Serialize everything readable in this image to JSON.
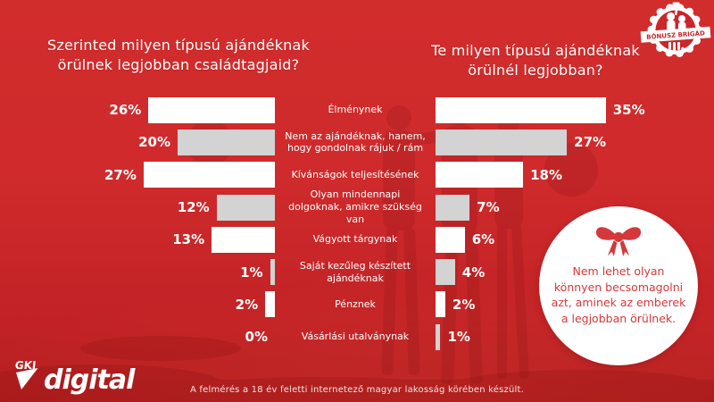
{
  "page": {
    "background_color": "#cf2a2c",
    "accent_red": "#d5383a"
  },
  "badge": {
    "label": "BÓNUSZ BRIGÁD"
  },
  "left_chart": {
    "title": "Szerinted milyen típusú ajándéknak örülnek legjobban családtagjaid?"
  },
  "right_chart": {
    "title": "Te milyen típusú ajándéknak örülnél legjobban?"
  },
  "chart_data": {
    "type": "bar",
    "orientation": "horizontal-butterfly",
    "categories": [
      "Élménynek",
      "Nem az ajándéknak, hanem, hogy gondolnak rájuk / rám",
      "Kívánságok teljesítésének",
      "Olyan mindennapi dolgoknak, amikre szükség van",
      "Vágyott tárgynak",
      "Saját kezűleg készített ajándéknak",
      "Pénznek",
      "Vásárlási utalványnak"
    ],
    "series": [
      {
        "name": "Szerinted milyen típusú ajándéknak örülnek legjobban családtagjaid?",
        "side": "left",
        "values": [
          26,
          20,
          27,
          12,
          13,
          1,
          2,
          0
        ]
      },
      {
        "name": "Te milyen típusú ajándéknak örülnél legjobban?",
        "side": "right",
        "values": [
          35,
          27,
          18,
          7,
          6,
          4,
          2,
          1
        ]
      }
    ],
    "value_suffix": "%",
    "bar_colors_alternating": [
      "#ffffff",
      "#d3d3d3"
    ],
    "xlim": [
      0,
      35
    ],
    "legend_position": "none",
    "grid": false
  },
  "callout": {
    "icon": "gift-bow",
    "text": "Nem lehet olyan könnyen becsomagolni azt, aminek az emberek a legjobban örülnek."
  },
  "logo": {
    "mark": "GKI",
    "text": "digital"
  },
  "footer": {
    "note": "A felmérés a 18 év feletti internetező magyar lakosság körében készült."
  }
}
